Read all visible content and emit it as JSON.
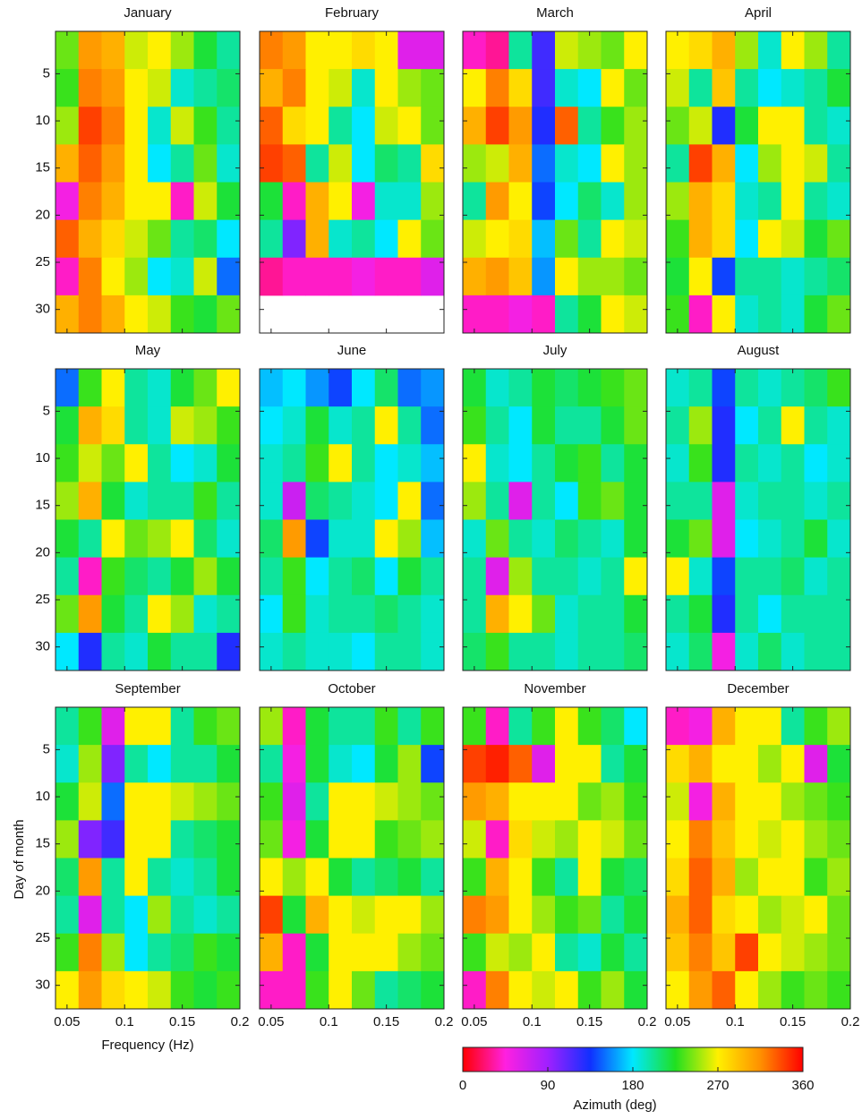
{
  "chart_data": {
    "type": "heatmap-grid",
    "x_label": "Frequency (Hz)",
    "y_label": "Day of month",
    "xlim": [
      0.04,
      0.2
    ],
    "xticks": [
      0.05,
      0.1,
      0.15,
      0.2
    ],
    "ylim": [
      32.5,
      0.5
    ],
    "yticks": [
      5,
      10,
      15,
      20,
      25,
      30
    ],
    "xbins": [
      0.04,
      0.06,
      0.08,
      0.1,
      0.12,
      0.14,
      0.16,
      0.18,
      0.2
    ],
    "ybins": [
      0.5,
      4.5,
      8.5,
      12.5,
      16.5,
      20.5,
      24.5,
      28.5,
      32.5
    ],
    "colorbar": {
      "label": "Azimuth (deg)",
      "lim": [
        0,
        360
      ],
      "ticks": [
        0,
        90,
        180,
        270,
        360
      ],
      "colors": [
        "#ff0000",
        "#ff20e0",
        "#a020ff",
        "#1030ff",
        "#00e8ff",
        "#20e020",
        "#fff000",
        "#ff9000",
        "#ff0000"
      ]
    },
    "panels": [
      {
        "title": "January",
        "values": [
          [
            240,
            310,
            300,
            260,
            270,
            250,
            220,
            200
          ],
          [
            230,
            320,
            310,
            270,
            260,
            190,
            200,
            210
          ],
          [
            250,
            340,
            320,
            270,
            190,
            260,
            230,
            200
          ],
          [
            300,
            330,
            310,
            270,
            180,
            200,
            240,
            190
          ],
          [
            50,
            320,
            300,
            270,
            270,
            40,
            260,
            220
          ],
          [
            330,
            300,
            280,
            260,
            240,
            200,
            210,
            180
          ],
          [
            40,
            320,
            270,
            250,
            180,
            190,
            260,
            150
          ],
          [
            300,
            320,
            300,
            270,
            260,
            230,
            220,
            240
          ]
        ]
      },
      {
        "title": "February",
        "values": [
          [
            320,
            310,
            270,
            270,
            280,
            270,
            60,
            60
          ],
          [
            300,
            320,
            270,
            260,
            190,
            270,
            250,
            240
          ],
          [
            330,
            280,
            270,
            200,
            180,
            260,
            270,
            240
          ],
          [
            340,
            330,
            200,
            260,
            180,
            210,
            200,
            280
          ],
          [
            220,
            40,
            300,
            270,
            50,
            190,
            190,
            250
          ],
          [
            200,
            100,
            300,
            190,
            200,
            180,
            270,
            240
          ],
          [
            30,
            40,
            40,
            40,
            50,
            40,
            40,
            60
          ],
          [
            null,
            null,
            null,
            null,
            null,
            null,
            null,
            null
          ]
        ]
      },
      {
        "title": "March",
        "values": [
          [
            40,
            30,
            200,
            120,
            260,
            250,
            240,
            270
          ],
          [
            270,
            320,
            280,
            120,
            190,
            180,
            270,
            240
          ],
          [
            300,
            340,
            310,
            130,
            330,
            200,
            230,
            250
          ],
          [
            250,
            260,
            300,
            150,
            190,
            180,
            270,
            250
          ],
          [
            200,
            310,
            270,
            140,
            180,
            210,
            190,
            250
          ],
          [
            260,
            270,
            280,
            170,
            240,
            200,
            270,
            260
          ],
          [
            300,
            310,
            290,
            160,
            270,
            250,
            250,
            240
          ],
          [
            40,
            40,
            50,
            40,
            200,
            220,
            270,
            260
          ]
        ]
      },
      {
        "title": "April",
        "values": [
          [
            270,
            280,
            300,
            250,
            190,
            270,
            250,
            200
          ],
          [
            260,
            200,
            290,
            200,
            180,
            190,
            200,
            220
          ],
          [
            240,
            260,
            130,
            220,
            270,
            270,
            200,
            190
          ],
          [
            200,
            340,
            300,
            180,
            250,
            270,
            260,
            200
          ],
          [
            250,
            300,
            280,
            190,
            200,
            270,
            200,
            190
          ],
          [
            230,
            300,
            280,
            180,
            270,
            260,
            220,
            240
          ],
          [
            220,
            270,
            140,
            200,
            200,
            190,
            200,
            210
          ],
          [
            230,
            40,
            270,
            190,
            200,
            190,
            220,
            240
          ]
        ]
      },
      {
        "title": "May",
        "values": [
          [
            150,
            230,
            270,
            200,
            190,
            220,
            240,
            270
          ],
          [
            220,
            300,
            280,
            200,
            190,
            260,
            250,
            230
          ],
          [
            230,
            260,
            240,
            270,
            200,
            180,
            190,
            220
          ],
          [
            250,
            300,
            220,
            190,
            200,
            200,
            230,
            200
          ],
          [
            220,
            200,
            270,
            240,
            250,
            270,
            210,
            190
          ],
          [
            200,
            40,
            230,
            210,
            200,
            220,
            250,
            220
          ],
          [
            240,
            310,
            220,
            200,
            270,
            250,
            190,
            200
          ],
          [
            180,
            130,
            200,
            190,
            220,
            200,
            200,
            130
          ]
        ]
      },
      {
        "title": "June",
        "values": [
          [
            170,
            180,
            160,
            140,
            180,
            210,
            150,
            160
          ],
          [
            180,
            190,
            220,
            190,
            200,
            270,
            200,
            150
          ],
          [
            190,
            200,
            230,
            270,
            200,
            180,
            190,
            170
          ],
          [
            190,
            70,
            210,
            200,
            190,
            180,
            270,
            150
          ],
          [
            210,
            310,
            140,
            190,
            190,
            270,
            250,
            170
          ],
          [
            200,
            230,
            180,
            200,
            210,
            180,
            220,
            200
          ],
          [
            180,
            230,
            190,
            200,
            200,
            210,
            200,
            190
          ],
          [
            190,
            200,
            190,
            190,
            180,
            200,
            200,
            190
          ]
        ]
      },
      {
        "title": "July",
        "values": [
          [
            220,
            190,
            200,
            220,
            210,
            220,
            230,
            240
          ],
          [
            230,
            200,
            180,
            220,
            200,
            200,
            220,
            240
          ],
          [
            270,
            190,
            180,
            200,
            220,
            230,
            200,
            220
          ],
          [
            250,
            200,
            60,
            200,
            180,
            230,
            240,
            220
          ],
          [
            190,
            240,
            200,
            190,
            210,
            200,
            190,
            220
          ],
          [
            200,
            60,
            250,
            200,
            200,
            190,
            200,
            270
          ],
          [
            200,
            300,
            270,
            240,
            190,
            200,
            200,
            220
          ],
          [
            210,
            230,
            200,
            200,
            190,
            200,
            200,
            210
          ]
        ]
      },
      {
        "title": "August",
        "values": [
          [
            190,
            200,
            140,
            200,
            190,
            200,
            210,
            230
          ],
          [
            200,
            250,
            130,
            180,
            200,
            270,
            200,
            190
          ],
          [
            190,
            230,
            130,
            200,
            190,
            200,
            180,
            190
          ],
          [
            200,
            200,
            60,
            190,
            200,
            200,
            190,
            200
          ],
          [
            220,
            240,
            60,
            180,
            190,
            200,
            220,
            190
          ],
          [
            270,
            190,
            140,
            200,
            200,
            210,
            190,
            200
          ],
          [
            200,
            220,
            130,
            200,
            180,
            200,
            200,
            200
          ],
          [
            190,
            210,
            50,
            190,
            210,
            190,
            200,
            200
          ]
        ]
      },
      {
        "title": "September",
        "values": [
          [
            200,
            230,
            60,
            270,
            270,
            200,
            230,
            240
          ],
          [
            190,
            250,
            100,
            200,
            180,
            200,
            200,
            220
          ],
          [
            220,
            260,
            150,
            270,
            270,
            260,
            250,
            240
          ],
          [
            250,
            100,
            120,
            270,
            270,
            200,
            210,
            220
          ],
          [
            210,
            310,
            200,
            270,
            200,
            190,
            200,
            220
          ],
          [
            200,
            60,
            200,
            180,
            250,
            200,
            190,
            200
          ],
          [
            230,
            320,
            250,
            180,
            200,
            210,
            230,
            220
          ],
          [
            270,
            310,
            280,
            270,
            260,
            230,
            220,
            230
          ]
        ]
      },
      {
        "title": "October",
        "values": [
          [
            250,
            40,
            220,
            200,
            200,
            230,
            200,
            230
          ],
          [
            200,
            50,
            220,
            190,
            180,
            220,
            250,
            140
          ],
          [
            230,
            60,
            200,
            270,
            270,
            260,
            250,
            240
          ],
          [
            240,
            50,
            220,
            270,
            270,
            230,
            240,
            250
          ],
          [
            270,
            250,
            270,
            220,
            200,
            210,
            220,
            200
          ],
          [
            340,
            220,
            300,
            270,
            260,
            270,
            270,
            250
          ],
          [
            300,
            40,
            220,
            270,
            270,
            270,
            250,
            240
          ],
          [
            40,
            40,
            230,
            270,
            240,
            200,
            210,
            220
          ]
        ]
      },
      {
        "title": "November",
        "values": [
          [
            230,
            40,
            200,
            230,
            270,
            230,
            210,
            180
          ],
          [
            340,
            350,
            330,
            60,
            270,
            270,
            200,
            220
          ],
          [
            310,
            300,
            270,
            270,
            270,
            240,
            250,
            230
          ],
          [
            260,
            40,
            280,
            260,
            250,
            270,
            260,
            240
          ],
          [
            230,
            300,
            270,
            230,
            200,
            270,
            220,
            210
          ],
          [
            320,
            310,
            270,
            250,
            230,
            240,
            200,
            220
          ],
          [
            230,
            260,
            250,
            270,
            200,
            190,
            220,
            200
          ],
          [
            40,
            320,
            270,
            260,
            270,
            230,
            250,
            220
          ]
        ]
      },
      {
        "title": "December",
        "values": [
          [
            40,
            50,
            300,
            270,
            270,
            200,
            230,
            250
          ],
          [
            280,
            300,
            270,
            270,
            250,
            270,
            60,
            220
          ],
          [
            260,
            50,
            300,
            270,
            270,
            250,
            240,
            230
          ],
          [
            270,
            320,
            290,
            270,
            260,
            270,
            250,
            240
          ],
          [
            280,
            330,
            300,
            250,
            270,
            270,
            230,
            250
          ],
          [
            300,
            330,
            280,
            270,
            250,
            260,
            270,
            240
          ],
          [
            290,
            320,
            290,
            340,
            270,
            260,
            250,
            240
          ],
          [
            270,
            310,
            330,
            270,
            250,
            230,
            240,
            230
          ]
        ]
      }
    ]
  }
}
